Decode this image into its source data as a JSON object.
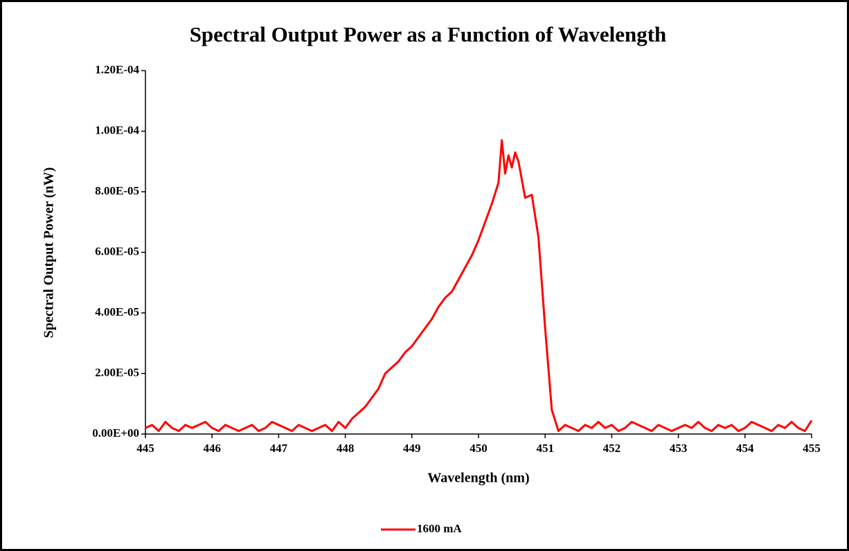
{
  "chart_data": {
    "type": "line",
    "title": "Spectral Output Power as a Function of Wavelength",
    "xlabel": "Wavelength (nm)",
    "ylabel": "Spectral Output Power (nW)",
    "x": [
      445.0,
      445.1,
      445.2,
      445.3,
      445.4,
      445.5,
      445.6,
      445.7,
      445.8,
      445.9,
      446.0,
      446.1,
      446.2,
      446.3,
      446.4,
      446.5,
      446.6,
      446.7,
      446.8,
      446.9,
      447.0,
      447.1,
      447.2,
      447.3,
      447.4,
      447.5,
      447.6,
      447.7,
      447.8,
      447.9,
      448.0,
      448.1,
      448.2,
      448.3,
      448.4,
      448.5,
      448.6,
      448.7,
      448.8,
      448.9,
      449.0,
      449.1,
      449.2,
      449.3,
      449.4,
      449.5,
      449.6,
      449.7,
      449.8,
      449.9,
      450.0,
      450.1,
      450.2,
      450.3,
      450.35,
      450.4,
      450.45,
      450.5,
      450.55,
      450.6,
      450.7,
      450.8,
      450.9,
      451.0,
      451.1,
      451.2,
      451.3,
      451.4,
      451.5,
      451.6,
      451.7,
      451.8,
      451.9,
      452.0,
      452.1,
      452.2,
      452.3,
      452.4,
      452.5,
      452.6,
      452.7,
      452.8,
      452.9,
      453.0,
      453.1,
      453.2,
      453.3,
      453.4,
      453.5,
      453.6,
      453.7,
      453.8,
      453.9,
      454.0,
      454.1,
      454.2,
      454.3,
      454.4,
      454.5,
      454.6,
      454.7,
      454.8,
      454.9,
      455.0
    ],
    "series": [
      {
        "name": "1600 mA",
        "color": "#ff0000",
        "values": [
          2e-06,
          3e-06,
          1e-06,
          4e-06,
          2e-06,
          1e-06,
          3e-06,
          2e-06,
          3e-06,
          4e-06,
          2e-06,
          1e-06,
          3e-06,
          2e-06,
          1e-06,
          2e-06,
          3e-06,
          1e-06,
          2e-06,
          4e-06,
          3e-06,
          2e-06,
          1e-06,
          3e-06,
          2e-06,
          1e-06,
          2e-06,
          3e-06,
          1e-06,
          4e-06,
          2e-06,
          5e-06,
          7e-06,
          9e-06,
          1.2e-05,
          1.5e-05,
          2e-05,
          2.2e-05,
          2.4e-05,
          2.7e-05,
          2.9e-05,
          3.2e-05,
          3.5e-05,
          3.8e-05,
          4.2e-05,
          4.5e-05,
          4.7e-05,
          5.1e-05,
          5.5e-05,
          5.9e-05,
          6.4e-05,
          7e-05,
          7.6e-05,
          8.3e-05,
          9.7e-05,
          8.6e-05,
          9.2e-05,
          8.8e-05,
          9.3e-05,
          9e-05,
          7.8e-05,
          7.9e-05,
          6.5e-05,
          3.5e-05,
          8e-06,
          1e-06,
          3e-06,
          2e-06,
          1e-06,
          3e-06,
          2e-06,
          4e-06,
          2e-06,
          3e-06,
          1e-06,
          2e-06,
          4e-06,
          3e-06,
          2e-06,
          1e-06,
          3e-06,
          2e-06,
          1e-06,
          2e-06,
          3e-06,
          2e-06,
          4e-06,
          2e-06,
          1e-06,
          3e-06,
          2e-06,
          3e-06,
          1e-06,
          2e-06,
          4e-06,
          3e-06,
          2e-06,
          1e-06,
          3e-06,
          2e-06,
          4e-06,
          2e-06,
          1e-06,
          4.5e-06
        ]
      }
    ],
    "xlim": [
      445,
      455
    ],
    "xticks": [
      445,
      446,
      447,
      448,
      449,
      450,
      451,
      452,
      453,
      454,
      455
    ],
    "ylim": [
      0,
      0.00012
    ],
    "yticks": [
      {
        "value": 0,
        "label": "0.00E+00"
      },
      {
        "value": 2e-05,
        "label": "2.00E-05"
      },
      {
        "value": 4e-05,
        "label": "4.00E-05"
      },
      {
        "value": 6e-05,
        "label": "6.00E-05"
      },
      {
        "value": 8e-05,
        "label": "8.00E-05"
      },
      {
        "value": 0.0001,
        "label": "1.00E-04"
      },
      {
        "value": 0.00012,
        "label": "1.20E-04"
      }
    ],
    "grid": false,
    "legend": "bottom"
  }
}
